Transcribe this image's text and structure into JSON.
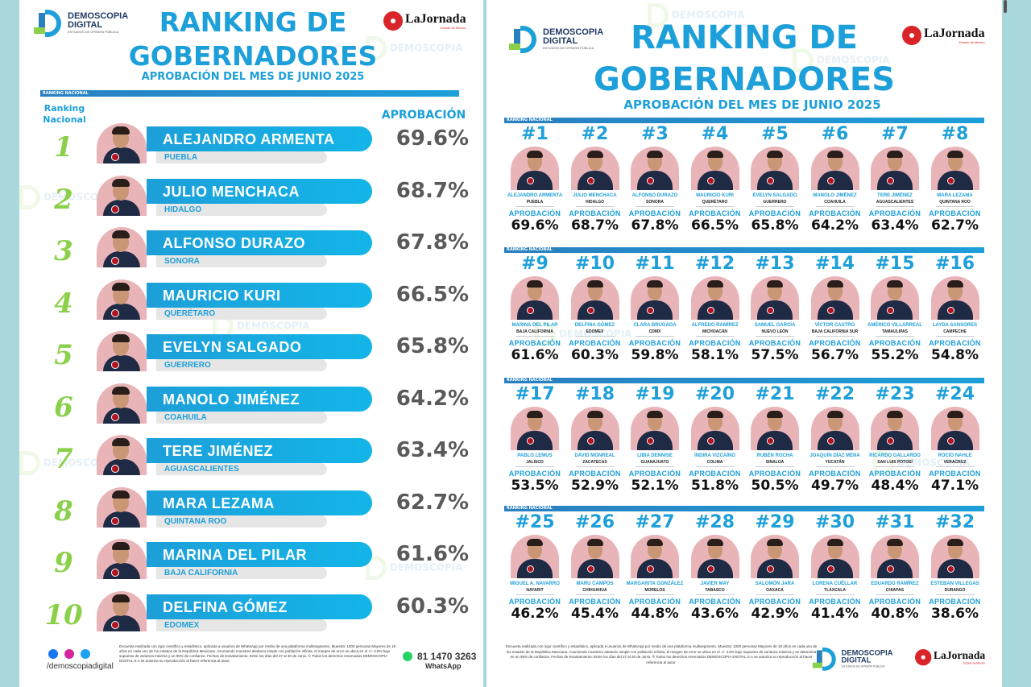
{
  "demoscopia": {
    "line1": "DEMOSCOPIA",
    "line2": "DIGITAL",
    "tagline": "ESTUDIOS DE OPINIÓN PÚBLICA"
  },
  "jornada": {
    "name": "LaJornada",
    "sub": "Estado de México"
  },
  "watermark": {
    "line1": "DEMOSCOPIA",
    "line2": "DIGITAL"
  },
  "left": {
    "title_line1": "RANKING DE",
    "title_line2": "GOBERNADORES",
    "subtitle": "APROBACIÓN DEL MES DE JUNIO 2025",
    "section_label": "RANKING NACIONAL",
    "col_rank_line1": "Ranking",
    "col_rank_line2": "Nacional",
    "col_approval": "APROBACIÓN",
    "rows": [
      {
        "rank": "1",
        "name": "ALEJANDRO ARMENTA",
        "state": "PUEBLA",
        "pct": "69.6%"
      },
      {
        "rank": "2",
        "name": "JULIO MENCHACA",
        "state": "HIDALGO",
        "pct": "68.7%"
      },
      {
        "rank": "3",
        "name": "ALFONSO DURAZO",
        "state": "SONORA",
        "pct": "67.8%"
      },
      {
        "rank": "4",
        "name": "MAURICIO KURI",
        "state": "QUERÉTARO",
        "pct": "66.5%"
      },
      {
        "rank": "5",
        "name": "EVELYN SALGADO",
        "state": "GUERRERO",
        "pct": "65.8%"
      },
      {
        "rank": "6",
        "name": "MANOLO JIMÉNEZ",
        "state": "COAHUILA",
        "pct": "64.2%"
      },
      {
        "rank": "7",
        "name": "TERE JIMÉNEZ",
        "state": "AGUASCALIENTES",
        "pct": "63.4%"
      },
      {
        "rank": "8",
        "name": "MARA LEZAMA",
        "state": "QUINTANA ROO",
        "pct": "62.7%"
      },
      {
        "rank": "9",
        "name": "MARINA DEL PILAR",
        "state": "BAJA CALIFORNIA",
        "pct": "61.6%"
      },
      {
        "rank": "10",
        "name": "DELFINA GÓMEZ",
        "state": "EDOMEX",
        "pct": "60.3%"
      }
    ],
    "footer_note": "Encuesta realizada con rigor científico y estadístico, aplicada a usuarios de WhatsApp por medio de una plataforma multisegmento. Muestra: 1000 personas Mayores de 18 años en cada uno de los estados de la República Mexicana. Asumiendo muestreo aleatorio simple con población infinita, el margen de error se ubica en el +/- 3.8% bajo supuesto de varianza máxima y un 95% de confianza. Fechas de levantamiento: Entre los días del 27 al 30 de Junio. © Todos los derechos reservados DEMOSCOPIA DIGITAL,S.A se autoriza su reproducción al hacer referencia al autor.",
    "handle": "/demoscopiadigital",
    "phone": "81 1470 3263",
    "whatsapp": "WhatsApp"
  },
  "right": {
    "title_line1": "RANKING DE",
    "title_line2": "GOBERNADORES",
    "subtitle": "APROBACIÓN DEL MES DE JUNIO 2025",
    "section_label": "RANKING NACIONAL",
    "approval_label": "APROBACIÓN",
    "cells": [
      {
        "rank": "#1",
        "name": "ALEJANDRO ARMENTA",
        "state": "PUEBLA",
        "pct": "69.6%"
      },
      {
        "rank": "#2",
        "name": "JULIO MENCHACA",
        "state": "HIDALGO",
        "pct": "68.7%"
      },
      {
        "rank": "#3",
        "name": "ALFONSO DURAZO",
        "state": "SONORA",
        "pct": "67.8%"
      },
      {
        "rank": "#4",
        "name": "MAURICIO KURI",
        "state": "QUERÉTARO",
        "pct": "66.5%"
      },
      {
        "rank": "#5",
        "name": "EVELYN SALGADO",
        "state": "GUERRERO",
        "pct": "65.8%"
      },
      {
        "rank": "#6",
        "name": "MANOLO JIMÉNEZ",
        "state": "COAHUILA",
        "pct": "64.2%"
      },
      {
        "rank": "#7",
        "name": "TERE JIMÉNEZ",
        "state": "AGUASCALIENTES",
        "pct": "63.4%"
      },
      {
        "rank": "#8",
        "name": "MARA LEZAMA",
        "state": "QUINTANA ROO",
        "pct": "62.7%"
      },
      {
        "rank": "#9",
        "name": "MARINA DEL PILAR",
        "state": "BAJA CALIFORNIA",
        "pct": "61.6%"
      },
      {
        "rank": "#10",
        "name": "DELFINA GÓMEZ",
        "state": "EDOMEX",
        "pct": "60.3%"
      },
      {
        "rank": "#11",
        "name": "CLARA BRUGADA",
        "state": "CDMX",
        "pct": "59.8%"
      },
      {
        "rank": "#12",
        "name": "ALFREDO RAMÍREZ",
        "state": "MICHOACÁN",
        "pct": "58.1%"
      },
      {
        "rank": "#13",
        "name": "SAMUEL GARCÍA",
        "state": "NUEVO LEÓN",
        "pct": "57.5%"
      },
      {
        "rank": "#14",
        "name": "VÍCTOR CASTRO",
        "state": "BAJA CALIFORNIA SUR",
        "pct": "56.7%"
      },
      {
        "rank": "#15",
        "name": "AMÉRICO VILLARREAL",
        "state": "TAMAULIPAS",
        "pct": "55.2%"
      },
      {
        "rank": "#16",
        "name": "LAYDA SANSORES",
        "state": "CAMPECHE",
        "pct": "54.8%"
      },
      {
        "rank": "#17",
        "name": "PABLO LEMUS",
        "state": "JALISCO",
        "pct": "53.5%"
      },
      {
        "rank": "#18",
        "name": "DAVID MONREAL",
        "state": "ZACATECAS",
        "pct": "52.9%"
      },
      {
        "rank": "#19",
        "name": "LIBIA DENNISE",
        "state": "GUANAJUATO",
        "pct": "52.1%"
      },
      {
        "rank": "#20",
        "name": "INDIRA VIZCAÍNO",
        "state": "COLIMA",
        "pct": "51.8%"
      },
      {
        "rank": "#21",
        "name": "RUBÉN ROCHA",
        "state": "SINALOA",
        "pct": "50.5%"
      },
      {
        "rank": "#22",
        "name": "JOAQUÍN DÍAZ MENA",
        "state": "YUCATÁN",
        "pct": "49.7%"
      },
      {
        "rank": "#23",
        "name": "RICARDO GALLARDO",
        "state": "SAN LUIS POTOSÍ",
        "pct": "48.4%"
      },
      {
        "rank": "#24",
        "name": "ROCÍO NAHLE",
        "state": "VERACRUZ",
        "pct": "47.1%"
      },
      {
        "rank": "#25",
        "name": "MIGUEL A. NAVARRO",
        "state": "NAYARIT",
        "pct": "46.2%"
      },
      {
        "rank": "#26",
        "name": "MARU CAMPOS",
        "state": "CHIHUAHUA",
        "pct": "45.4%"
      },
      {
        "rank": "#27",
        "name": "MARGARITA GONZÁLEZ",
        "state": "MORELOS",
        "pct": "44.8%"
      },
      {
        "rank": "#28",
        "name": "JAVIER MAY",
        "state": "TABASCO",
        "pct": "43.6%"
      },
      {
        "rank": "#29",
        "name": "SALOMÓN JARA",
        "state": "OAXACA",
        "pct": "42.9%"
      },
      {
        "rank": "#30",
        "name": "LORENA CUÉLLAR",
        "state": "TLAXCALA",
        "pct": "41.4%"
      },
      {
        "rank": "#31",
        "name": "EDUARDO RAMÍREZ",
        "state": "CHIAPAS",
        "pct": "40.8%"
      },
      {
        "rank": "#32",
        "name": "ESTEBAN VILLEGAS",
        "state": "DURANGO",
        "pct": "38.6%"
      }
    ],
    "footer_note": "Encuesta realizada con rigor científico y estadístico, aplicada a usuarios de WhatsApp por medio de una plataforma multisegmento. Muestra: 1000 personas Mayores de 18 años en cada uno de los estados de la República Mexicana. Asumiendo muestreo aleatorio simple con población infinita, el margen de error se ubica en el +/- 3.8% bajo supuesto de varianza máxima y se determina en un 95% de confianza. Fechas de levantamiento: Entre los días del 27 al 30 de Junio. ® Todos los derechos reservados DEMOSCOPIA DIGITAL,S.A se autoriza su reproducción al hacer referencia al autor."
  },
  "colors": {
    "accent": "#1d9fd9",
    "green": "#8bd04a",
    "pct_grey": "#5a5a5a",
    "morena": "#b1121f",
    "background": "#a8d8dc"
  }
}
